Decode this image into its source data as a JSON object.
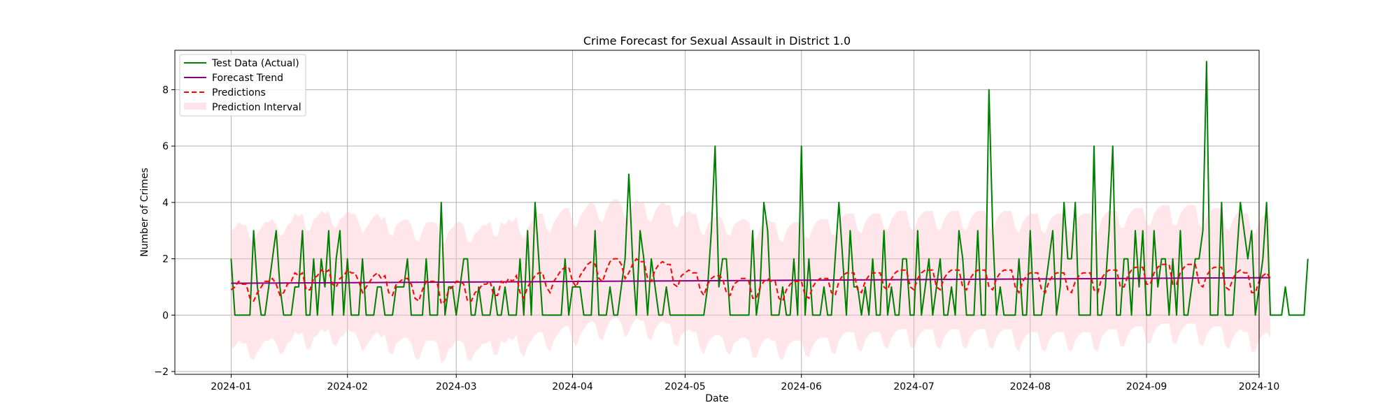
{
  "chart_data": {
    "type": "line",
    "title": "Crime Forecast for Sexual Assault in District 1.0",
    "xlabel": "Date",
    "ylabel": "Number of Crimes",
    "xlim": [
      "2023-12-17",
      "2024-10-01"
    ],
    "ylim": [
      -2.1,
      9.4
    ],
    "grid": true,
    "legend_position": "top-left",
    "x_ticks": [
      "2024-01",
      "2024-02",
      "2024-03",
      "2024-04",
      "2024-05",
      "2024-06",
      "2024-07",
      "2024-08",
      "2024-09",
      "2024-10"
    ],
    "y_ticks": [
      -2,
      0,
      2,
      4,
      6,
      8
    ],
    "date_range": {
      "start": "2024-01-01",
      "end": "2024-09-18",
      "frequency": "daily"
    },
    "series": [
      {
        "name": "Test Data (Actual)",
        "style": "solid",
        "color": "#008000",
        "values": [
          2,
          0,
          0,
          0,
          0,
          0,
          3,
          1,
          0,
          0,
          1,
          2,
          3,
          1,
          0,
          0,
          0,
          1,
          1,
          3,
          0,
          0,
          2,
          0,
          2,
          1,
          3,
          0,
          2,
          3,
          0,
          2,
          0,
          0,
          0,
          2,
          0,
          0,
          0,
          1,
          1,
          0,
          0,
          0,
          1,
          1,
          1,
          2,
          0,
          0,
          0,
          0,
          2,
          0,
          0,
          0,
          4,
          0,
          1,
          1,
          0,
          1,
          2,
          2,
          0,
          0,
          1,
          0,
          0,
          0,
          1,
          0,
          0,
          1,
          0,
          0,
          0,
          2,
          0,
          3,
          0,
          4,
          2,
          0,
          0,
          0,
          0,
          0,
          0,
          2,
          0,
          1,
          1,
          1,
          0,
          0,
          0,
          3,
          0,
          0,
          0,
          1,
          0,
          0,
          1,
          2,
          5,
          2,
          0,
          3,
          2,
          0,
          2,
          1,
          0,
          0,
          1,
          0,
          0,
          0,
          0,
          0,
          0,
          0,
          0,
          0,
          0,
          1,
          3,
          6,
          1,
          2,
          2,
          0,
          0,
          0,
          0,
          0,
          0,
          3,
          0,
          1,
          4,
          3,
          0,
          0,
          0,
          1,
          0,
          0,
          2,
          0,
          6,
          0,
          2,
          0,
          0,
          0,
          1,
          0,
          0,
          2,
          4,
          2,
          0,
          3,
          1,
          1,
          0,
          1,
          0,
          2,
          0,
          0,
          3,
          0,
          1,
          0,
          0,
          2,
          2,
          0,
          0,
          3,
          0,
          1,
          2,
          0,
          1,
          2,
          0,
          0,
          1,
          0,
          3,
          2,
          0,
          0,
          0,
          3,
          0,
          0,
          8,
          3,
          0,
          1,
          0,
          0,
          0,
          0,
          2,
          0,
          0,
          3,
          0,
          0,
          0,
          1,
          2,
          3,
          0,
          1,
          4,
          2,
          2,
          4,
          0,
          0,
          0,
          0,
          6,
          0,
          0,
          1,
          3,
          6,
          0,
          0,
          2,
          2,
          0,
          3,
          1,
          3,
          0,
          0,
          3,
          1,
          2,
          2,
          0,
          2,
          0,
          3,
          0,
          0,
          1,
          2,
          2,
          3,
          9,
          0,
          0,
          0,
          4,
          0,
          0,
          0,
          2,
          4,
          3,
          2,
          3,
          0,
          1,
          2,
          4,
          0,
          0,
          0,
          0,
          1,
          0,
          0,
          0,
          0,
          0,
          2
        ]
      },
      {
        "name": "Forecast Trend",
        "style": "solid",
        "color": "#800080",
        "values_linear": {
          "start": 1.13,
          "end": 1.33
        }
      },
      {
        "name": "Predictions",
        "style": "dashed",
        "color": "#ff0000",
        "values": [
          0.9,
          1.0,
          1.2,
          1.1,
          1.1,
          0.6,
          0.5,
          0.8,
          1.0,
          1.2,
          1.2,
          1.3,
          1.1,
          0.7,
          0.8,
          1.1,
          1.2,
          1.5,
          1.4,
          1.5,
          0.9,
          0.9,
          1.3,
          1.4,
          1.6,
          1.5,
          1.6,
          1.1,
          1.0,
          1.3,
          1.4,
          1.6,
          1.5,
          1.5,
          1.2,
          0.8,
          1.0,
          1.2,
          1.4,
          1.5,
          1.3,
          1.4,
          0.8,
          0.7,
          1.1,
          1.2,
          1.3,
          1.3,
          1.1,
          0.6,
          0.5,
          0.9,
          1.2,
          1.2,
          1.2,
          1.1,
          0.4,
          0.5,
          0.9,
          1.0,
          1.2,
          1.2,
          1.1,
          0.5,
          0.5,
          0.8,
          0.9,
          1.1,
          1.1,
          1.2,
          0.7,
          0.7,
          1.2,
          1.1,
          1.3,
          1.2,
          1.4,
          0.8,
          0.6,
          1.0,
          1.2,
          1.4,
          1.5,
          1.5,
          1.0,
          0.8,
          1.2,
          1.4,
          1.6,
          1.7,
          1.7,
          1.2,
          1.0,
          1.4,
          1.6,
          1.8,
          1.9,
          1.8,
          1.3,
          1.2,
          1.6,
          1.9,
          2.0,
          2.0,
          1.8,
          1.3,
          1.5,
          1.8,
          2.0,
          1.9,
          1.9,
          1.3,
          1.2,
          1.6,
          1.8,
          1.9,
          1.8,
          1.8,
          1.1,
          1.0,
          1.4,
          1.5,
          1.6,
          1.5,
          1.5,
          0.9,
          0.7,
          1.1,
          1.3,
          1.4,
          1.4,
          1.3,
          0.8,
          0.7,
          1.1,
          1.2,
          1.3,
          1.3,
          1.2,
          0.6,
          0.6,
          1.0,
          1.2,
          1.3,
          1.2,
          1.2,
          0.6,
          0.5,
          0.9,
          1.1,
          1.2,
          1.2,
          1.2,
          0.7,
          0.6,
          1.0,
          1.2,
          1.3,
          1.3,
          1.3,
          0.8,
          0.7,
          1.2,
          1.4,
          1.5,
          1.5,
          1.5,
          0.9,
          0.8,
          1.2,
          1.4,
          1.5,
          1.5,
          1.5,
          1.0,
          0.9,
          1.3,
          1.5,
          1.6,
          1.6,
          1.6,
          1.0,
          0.9,
          1.3,
          1.5,
          1.6,
          1.6,
          1.6,
          1.0,
          0.9,
          1.3,
          1.5,
          1.6,
          1.6,
          1.6,
          1.0,
          0.9,
          1.3,
          1.5,
          1.6,
          1.6,
          1.6,
          1.0,
          0.9,
          1.3,
          1.5,
          1.6,
          1.6,
          1.6,
          1.0,
          0.8,
          1.2,
          1.4,
          1.5,
          1.5,
          1.5,
          0.9,
          0.8,
          1.2,
          1.4,
          1.5,
          1.5,
          1.5,
          0.9,
          0.8,
          1.2,
          1.4,
          1.5,
          1.5,
          1.5,
          0.9,
          0.8,
          1.3,
          1.5,
          1.6,
          1.6,
          1.6,
          1.0,
          1.0,
          1.4,
          1.6,
          1.7,
          1.7,
          1.7,
          1.1,
          1.1,
          1.5,
          1.7,
          1.8,
          1.8,
          1.8,
          1.1,
          1.1,
          1.5,
          1.7,
          1.8,
          1.8,
          1.8,
          1.1,
          1.0,
          1.4,
          1.6,
          1.7,
          1.7,
          1.7,
          1.0,
          0.9,
          1.3,
          1.5,
          1.6,
          1.5,
          1.5,
          0.8,
          0.8,
          1.2,
          1.4,
          1.5,
          1.3
        ]
      },
      {
        "name": "Prediction Interval",
        "style": "band",
        "color": "#ffc0cb",
        "band_halfwidth": 2.1
      }
    ]
  }
}
